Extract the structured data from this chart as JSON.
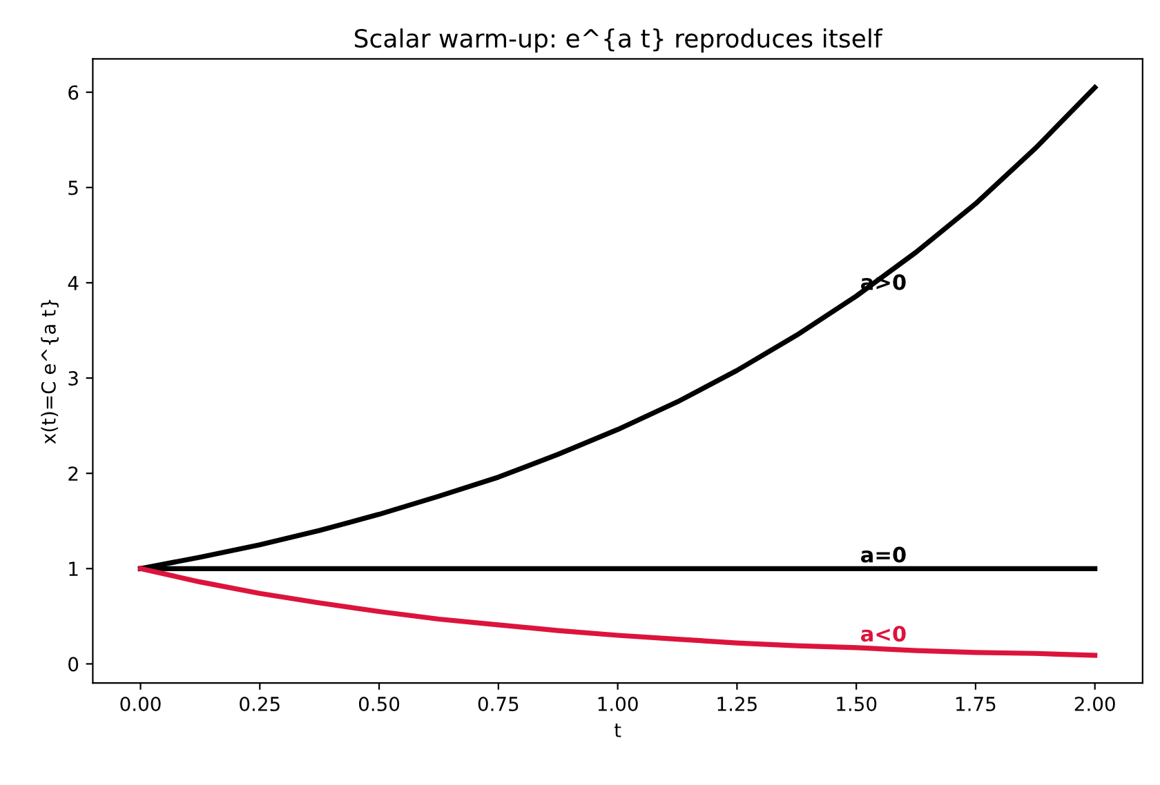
{
  "chart_data": {
    "type": "line",
    "title": "Scalar warm-up: e^{a t} reproduces itself",
    "xlabel": "t",
    "ylabel": "x(t)=C e^{a t}",
    "x": [
      0,
      0.125,
      0.25,
      0.375,
      0.5,
      0.625,
      0.75,
      0.875,
      1,
      1.125,
      1.25,
      1.375,
      1.5,
      1.625,
      1.75,
      1.875,
      2
    ],
    "series": [
      {
        "name": "a>0",
        "color": "#000000",
        "values": [
          1,
          1.12,
          1.25,
          1.4,
          1.57,
          1.76,
          1.96,
          2.2,
          2.46,
          2.75,
          3.08,
          3.45,
          3.86,
          4.32,
          4.83,
          5.41,
          6.05
        ]
      },
      {
        "name": "a=0",
        "color": "#000000",
        "values": [
          1,
          1,
          1,
          1,
          1,
          1,
          1,
          1,
          1,
          1,
          1,
          1,
          1,
          1,
          1,
          1,
          1
        ]
      },
      {
        "name": "a<0",
        "color": "#dc143c",
        "values": [
          1,
          0.86,
          0.74,
          0.64,
          0.55,
          0.47,
          0.41,
          0.35,
          0.3,
          0.26,
          0.22,
          0.19,
          0.17,
          0.14,
          0.12,
          0.11,
          0.09
        ]
      }
    ],
    "xlim": [
      -0.1,
      2.1
    ],
    "ylim": [
      -0.2,
      6.35
    ],
    "xticks": [
      {
        "value": 0,
        "label": "0.00"
      },
      {
        "value": 0.25,
        "label": "0.25"
      },
      {
        "value": 0.5,
        "label": "0.50"
      },
      {
        "value": 0.75,
        "label": "0.75"
      },
      {
        "value": 1,
        "label": "1.00"
      },
      {
        "value": 1.25,
        "label": "1.25"
      },
      {
        "value": 1.5,
        "label": "1.50"
      },
      {
        "value": 1.75,
        "label": "1.75"
      },
      {
        "value": 2,
        "label": "2.00"
      }
    ],
    "yticks": [
      0,
      1,
      2,
      3,
      4,
      5,
      6
    ],
    "grid": false,
    "legend": false,
    "marker": "none",
    "line_style": "solid"
  }
}
